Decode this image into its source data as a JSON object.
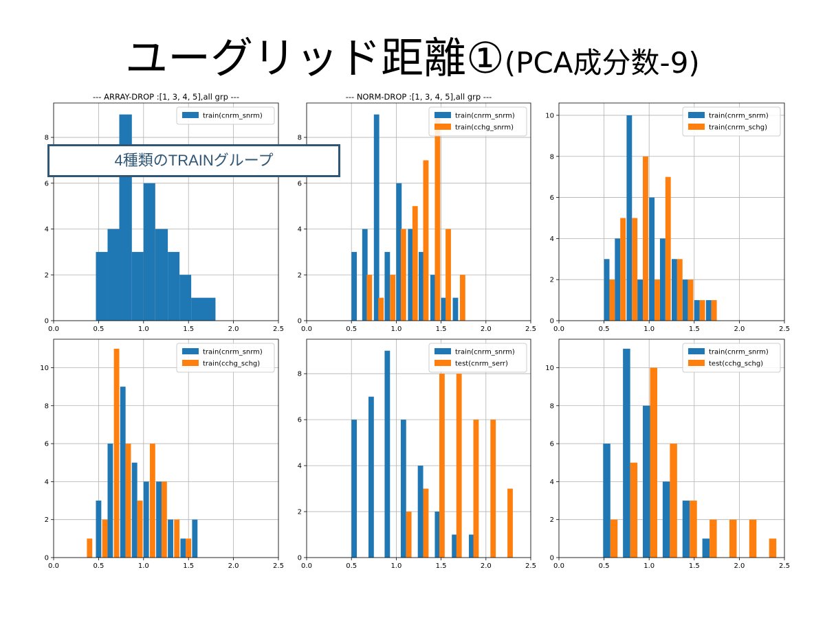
{
  "slide": {
    "title_main": "ユーグリッド距離①",
    "title_sub": "(PCA成分数-9)"
  },
  "callout": {
    "text": "4種類のTRAINグループ"
  },
  "colors": {
    "blue": "#1f77b4",
    "orange": "#ff7f0e"
  },
  "chart_data": [
    {
      "type": "bar",
      "title": "--- ARRAY-DROP :[1, 3, 4, 5],all grp ---",
      "xlim": [
        0,
        2.5
      ],
      "ylim": [
        0,
        9.5
      ],
      "xticks": [
        "0.0",
        "0.5",
        "1.0",
        "1.5",
        "2.0",
        "2.5"
      ],
      "yticks": [
        "0",
        "2",
        "4",
        "6",
        "8"
      ],
      "grid": true,
      "legend": "top-right",
      "series": [
        {
          "name": "train(cnrm_snrm)",
          "color": "#1f77b4",
          "bins": [
            [
              0.47,
              0.6,
              3
            ],
            [
              0.6,
              0.73,
              4
            ],
            [
              0.73,
              0.87,
              9
            ],
            [
              0.87,
              1.0,
              3
            ],
            [
              1.0,
              1.13,
              6
            ],
            [
              1.13,
              1.27,
              4
            ],
            [
              1.27,
              1.4,
              3
            ],
            [
              1.4,
              1.53,
              2
            ],
            [
              1.53,
              1.8,
              1
            ]
          ]
        }
      ]
    },
    {
      "type": "bar",
      "title": "--- NORM-DROP :[1, 3, 4, 5],all grp ---",
      "xlim": [
        0,
        2.5
      ],
      "ylim": [
        0,
        9.5
      ],
      "xticks": [
        "0.0",
        "0.5",
        "1.0",
        "1.5",
        "2.0",
        "2.5"
      ],
      "yticks": [
        "0",
        "2",
        "4",
        "6",
        "8"
      ],
      "grid": true,
      "legend": "top-right",
      "series": [
        {
          "name": "train(cnrm_snrm)",
          "color": "#1f77b4",
          "bins": [
            [
              0.5,
              0.56,
              3
            ],
            [
              0.62,
              0.68,
              4
            ],
            [
              0.75,
              0.81,
              9
            ],
            [
              0.87,
              0.93,
              3
            ],
            [
              1.0,
              1.06,
              6
            ],
            [
              1.13,
              1.19,
              4
            ],
            [
              1.25,
              1.31,
              3
            ],
            [
              1.38,
              1.44,
              2
            ],
            [
              1.5,
              1.56,
              1
            ],
            [
              1.63,
              1.69,
              1
            ]
          ]
        },
        {
          "name": "train(cchg_snrm)",
          "color": "#ff7f0e",
          "bins": [
            [
              0.67,
              0.73,
              2
            ],
            [
              0.8,
              0.86,
              1
            ],
            [
              0.93,
              0.99,
              2
            ],
            [
              1.05,
              1.11,
              4
            ],
            [
              1.18,
              1.24,
              5
            ],
            [
              1.3,
              1.36,
              7
            ],
            [
              1.43,
              1.49,
              9
            ],
            [
              1.55,
              1.61,
              4
            ],
            [
              1.71,
              1.77,
              2
            ]
          ]
        }
      ]
    },
    {
      "type": "bar",
      "title": "",
      "xlim": [
        0,
        2.5
      ],
      "ylim": [
        0,
        10.6
      ],
      "xticks": [
        "0.0",
        "0.5",
        "1.0",
        "1.5",
        "2.0",
        "2.5"
      ],
      "yticks": [
        "0",
        "2",
        "4",
        "6",
        "8",
        "10"
      ],
      "grid": true,
      "legend": "top-right",
      "series": [
        {
          "name": "train(cnrm_snrm)",
          "color": "#1f77b4",
          "bins": [
            [
              0.5,
              0.56,
              3
            ],
            [
              0.62,
              0.68,
              4
            ],
            [
              0.75,
              0.81,
              10
            ],
            [
              0.87,
              0.93,
              2
            ],
            [
              1.0,
              1.06,
              6
            ],
            [
              1.12,
              1.18,
              4
            ],
            [
              1.25,
              1.31,
              3
            ],
            [
              1.37,
              1.43,
              2
            ],
            [
              1.5,
              1.56,
              1
            ],
            [
              1.63,
              1.69,
              1
            ]
          ]
        },
        {
          "name": "train(cnrm_schg)",
          "color": "#ff7f0e",
          "bins": [
            [
              0.56,
              0.62,
              2
            ],
            [
              0.68,
              0.74,
              5
            ],
            [
              0.81,
              0.87,
              5
            ],
            [
              0.93,
              0.99,
              8
            ],
            [
              1.06,
              1.12,
              2
            ],
            [
              1.18,
              1.24,
              7
            ],
            [
              1.31,
              1.37,
              3
            ],
            [
              1.43,
              1.49,
              2
            ],
            [
              1.56,
              1.62,
              1
            ],
            [
              1.69,
              1.75,
              1
            ]
          ]
        }
      ]
    },
    {
      "type": "bar",
      "title": "",
      "xlim": [
        0,
        2.5
      ],
      "ylim": [
        0,
        11.5
      ],
      "xticks": [
        "0.0",
        "0.5",
        "1.0",
        "1.5",
        "2.0",
        "2.5"
      ],
      "yticks": [
        "0",
        "2",
        "4",
        "6",
        "8",
        "10"
      ],
      "grid": true,
      "legend": "top-right",
      "series": [
        {
          "name": "train(cnrm_snrm)",
          "color": "#1f77b4",
          "bins": [
            [
              0.47,
              0.53,
              3
            ],
            [
              0.6,
              0.66,
              6
            ],
            [
              0.74,
              0.8,
              9
            ],
            [
              0.87,
              0.93,
              5
            ],
            [
              1.0,
              1.06,
              4
            ],
            [
              1.14,
              1.2,
              4
            ],
            [
              1.27,
              1.33,
              2
            ],
            [
              1.41,
              1.47,
              1
            ],
            [
              1.54,
              1.6,
              2
            ]
          ]
        },
        {
          "name": "train(cchg_schg)",
          "color": "#ff7f0e",
          "bins": [
            [
              0.37,
              0.43,
              1
            ],
            [
              0.54,
              0.6,
              2
            ],
            [
              0.67,
              0.73,
              11
            ],
            [
              0.8,
              0.86,
              6
            ],
            [
              0.93,
              0.99,
              3
            ],
            [
              1.07,
              1.13,
              6
            ],
            [
              1.2,
              1.26,
              4
            ],
            [
              1.34,
              1.4,
              2
            ],
            [
              1.47,
              1.53,
              1
            ]
          ]
        }
      ]
    },
    {
      "type": "bar",
      "title": "",
      "xlim": [
        0,
        2.5
      ],
      "ylim": [
        0,
        9.5
      ],
      "xticks": [
        "0.0",
        "0.5",
        "1.0",
        "1.5",
        "2.0",
        "2.5"
      ],
      "yticks": [
        "0",
        "2",
        "4",
        "6",
        "8"
      ],
      "grid": true,
      "legend": "top-right",
      "series": [
        {
          "name": "train(cnrm_snrm)",
          "color": "#1f77b4",
          "bins": [
            [
              0.5,
              0.56,
              6
            ],
            [
              0.69,
              0.75,
              7
            ],
            [
              0.87,
              0.93,
              9
            ],
            [
              1.05,
              1.11,
              6
            ],
            [
              1.24,
              1.3,
              4
            ],
            [
              1.43,
              1.49,
              2
            ],
            [
              1.62,
              1.68,
              1
            ],
            [
              1.81,
              1.87,
              1
            ]
          ]
        },
        {
          "name": "test(cnrm_serr)",
          "color": "#ff7f0e",
          "bins": [
            [
              1.11,
              1.17,
              2
            ],
            [
              1.3,
              1.36,
              3
            ],
            [
              1.48,
              1.54,
              8
            ],
            [
              1.67,
              1.73,
              8
            ],
            [
              1.86,
              1.92,
              6
            ],
            [
              2.05,
              2.11,
              6
            ],
            [
              2.24,
              2.3,
              3
            ]
          ]
        }
      ]
    },
    {
      "type": "bar",
      "title": "",
      "xlim": [
        0,
        2.5
      ],
      "ylim": [
        0,
        11.5
      ],
      "xticks": [
        "0.0",
        "0.5",
        "1.0",
        "1.5",
        "2.0",
        "2.5"
      ],
      "yticks": [
        "0",
        "2",
        "4",
        "6",
        "8",
        "10"
      ],
      "grid": true,
      "legend": "top-right",
      "series": [
        {
          "name": "train(cnrm_snrm)",
          "color": "#1f77b4",
          "bins": [
            [
              0.49,
              0.57,
              6
            ],
            [
              0.71,
              0.79,
              11
            ],
            [
              0.93,
              1.01,
              8
            ],
            [
              1.15,
              1.23,
              4
            ],
            [
              1.37,
              1.45,
              3
            ],
            [
              1.59,
              1.67,
              1
            ]
          ]
        },
        {
          "name": "test(cchg_schg)",
          "color": "#ff7f0e",
          "bins": [
            [
              0.57,
              0.65,
              2
            ],
            [
              0.79,
              0.87,
              5
            ],
            [
              1.01,
              1.09,
              10
            ],
            [
              1.23,
              1.31,
              6
            ],
            [
              1.45,
              1.53,
              3
            ],
            [
              1.67,
              1.75,
              2
            ],
            [
              1.89,
              1.97,
              2
            ],
            [
              2.11,
              2.19,
              2
            ],
            [
              2.33,
              2.41,
              1
            ]
          ]
        }
      ]
    }
  ]
}
